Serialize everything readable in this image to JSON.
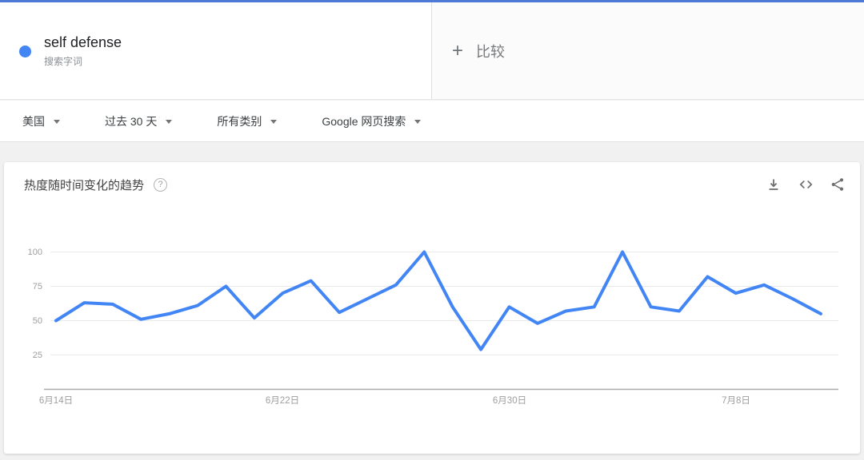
{
  "colors": {
    "accent_blue": "#4285f4",
    "top_border_blue": "#4e79d4",
    "page_bg": "#f1f1f1"
  },
  "header": {
    "term": {
      "label": "self defense",
      "sublabel": "搜索字词"
    },
    "compare": {
      "plus": "+",
      "label": "比较"
    }
  },
  "filters": {
    "items": [
      {
        "label": "美国"
      },
      {
        "label": "过去 30 天"
      },
      {
        "label": "所有类别"
      },
      {
        "label": "Google 网页搜索"
      }
    ]
  },
  "chart_card": {
    "title": "热度随时间变化的趋势",
    "help_glyph": "?"
  },
  "chart_data": {
    "type": "line",
    "title": "热度随时间变化的趋势",
    "x_tick_labels": [
      "6月14日",
      "6月22日",
      "6月30日",
      "7月8日"
    ],
    "y_ticks": [
      "100",
      "75",
      "50",
      "25"
    ],
    "ylim": [
      0,
      100
    ],
    "grid": true,
    "legend_position": "none",
    "x_unit": "day",
    "series": [
      {
        "name": "self defense",
        "color": "#4285f4",
        "values": [
          50,
          63,
          62,
          51,
          55,
          61,
          75,
          52,
          70,
          79,
          56,
          66,
          76,
          100,
          60,
          29,
          60,
          48,
          57,
          60,
          100,
          60,
          57,
          82,
          70,
          76,
          66,
          55
        ]
      }
    ]
  }
}
